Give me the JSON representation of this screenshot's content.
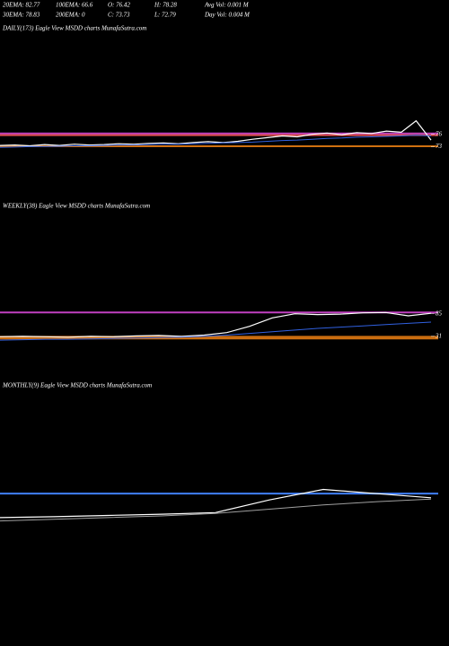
{
  "header": {
    "stats": [
      [
        "20EMA: 82.77",
        "100EMA: 66.6",
        "O: 76.42",
        "H: 78.28",
        "Avg Vol: 0.001 M"
      ],
      [
        "30EMA: 78.83",
        "200EMA: 0",
        "C: 73.73",
        "L: 72.79",
        "Day Vol: 0.004 M"
      ]
    ]
  },
  "chart_data": [
    {
      "type": "line",
      "title": "DAILY(173) Eagle  View  MSDD charts MunafaSutra.com",
      "ylim": [
        65,
        100
      ],
      "yticks": [
        76,
        73
      ],
      "levels": [
        {
          "value": 76.2,
          "color": "#c040c0"
        },
        {
          "value": 75.8,
          "color": "#e05050"
        },
        {
          "value": 73.1,
          "color": "#d07010"
        }
      ],
      "series": [
        {
          "color": "#ffffff",
          "values": [
            73.3,
            73.4,
            73.2,
            73.5,
            73.3,
            73.6,
            73.4,
            73.5,
            73.7,
            73.6,
            73.8,
            73.9,
            73.7,
            74.0,
            74.2,
            74.0,
            74.3,
            74.8,
            75.2,
            75.6,
            75.4,
            76.0,
            76.3,
            75.9,
            76.4,
            76.2,
            76.8,
            76.5,
            79.3,
            74.6
          ]
        },
        {
          "color": "#3060e0",
          "values": [
            72.8,
            72.9,
            73.0,
            73.0,
            73.1,
            73.2,
            73.2,
            73.3,
            73.4,
            73.4,
            73.5,
            73.6,
            73.6,
            73.7,
            73.8,
            73.9,
            74.0,
            74.1,
            74.3,
            74.5,
            74.6,
            74.8,
            75.0,
            75.1,
            75.3,
            75.4,
            75.5,
            75.6,
            75.8,
            75.6
          ]
        }
      ]
    },
    {
      "type": "line",
      "title": "WEEKLY(38) Eagle  View  MSDD charts MunafaSutra.com",
      "ylim": [
        20,
        320
      ],
      "yticks": [
        85,
        31
      ],
      "levels": [
        {
          "value": 88,
          "color": "#c040c0"
        },
        {
          "value": 30,
          "color": "#d07010"
        },
        {
          "value": 26,
          "color": "#d07010"
        }
      ],
      "series": [
        {
          "color": "#ffffff",
          "values": [
            30,
            31,
            30,
            29,
            31,
            30,
            32,
            33,
            31,
            34,
            40,
            55,
            75,
            85,
            83,
            84,
            87,
            88,
            80,
            86
          ]
        },
        {
          "color": "#3060e0",
          "values": [
            22,
            23,
            24,
            24,
            25,
            26,
            27,
            28,
            29,
            31,
            34,
            38,
            42,
            46,
            50,
            53,
            56,
            59,
            62,
            65
          ]
        }
      ]
    },
    {
      "type": "line",
      "title": "MONTHLY(9) Eagle  View  MSDD charts MunafaSutra.com",
      "ylim": [
        0,
        320
      ],
      "levels": [
        {
          "value": 85,
          "color": "#4080ff"
        }
      ],
      "series": [
        {
          "color": "#ffffff",
          "values": [
            28,
            30,
            33,
            36,
            40,
            70,
            95,
            85,
            75
          ]
        },
        {
          "color": "#a0a0a0",
          "values": [
            20,
            24,
            28,
            32,
            38,
            48,
            58,
            66,
            72
          ]
        }
      ]
    }
  ]
}
